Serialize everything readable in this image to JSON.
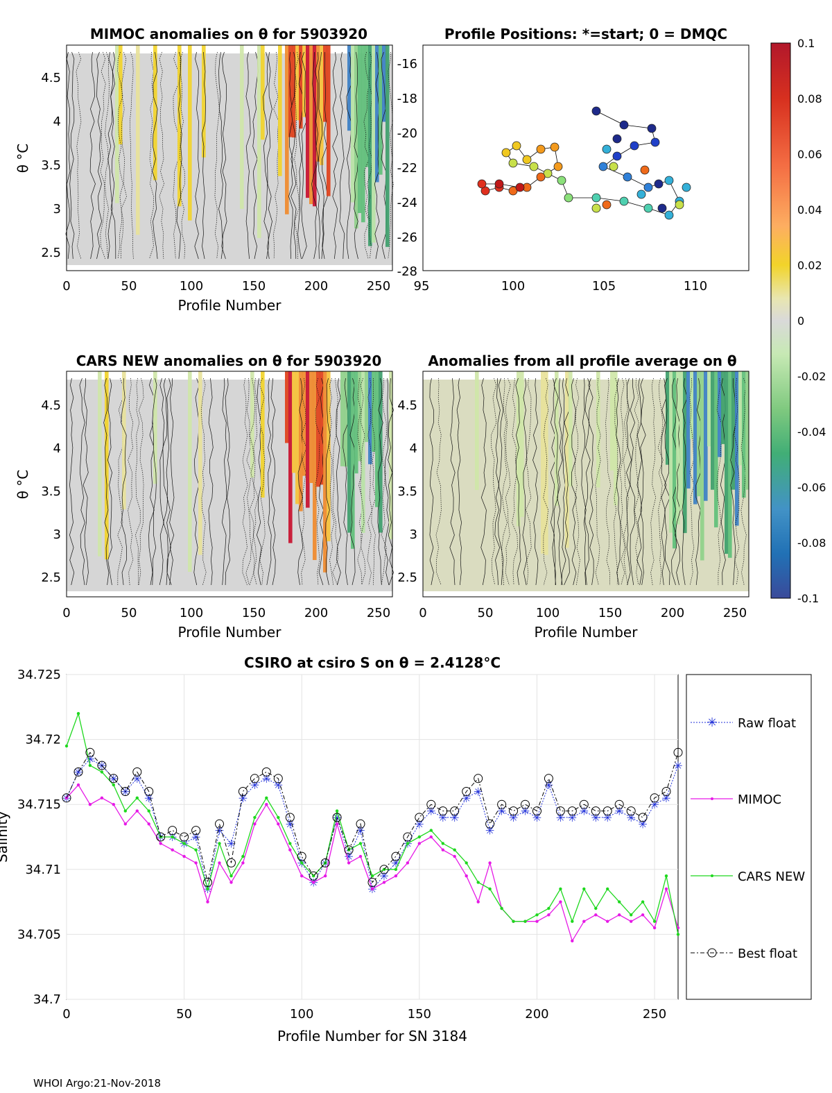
{
  "footer": "WHOI Argo:21-Nov-2018",
  "colorbar": {
    "ticks": [
      "0.1",
      "0.08",
      "0.06",
      "0.04",
      "0.02",
      "0",
      "-0.02",
      "-0.04",
      "-0.06",
      "-0.08",
      "-0.1"
    ],
    "colors": [
      "#b2182b",
      "#d7301f",
      "#f46d43",
      "#fdae61",
      "#f2d42a",
      "#e8e6b0",
      "#d9d9d9",
      "#c7e9b4",
      "#7fc97f",
      "#41ae76",
      "#4292c6",
      "#2171b5",
      "#3a4a9a"
    ]
  },
  "panels": {
    "mimoc": {
      "title": "MIMOC anomalies on θ  for 5903920",
      "xlabel": "Profile Number",
      "ylabel": "θ °C",
      "xticks": [
        "0",
        "50",
        "100",
        "150",
        "200",
        "250"
      ],
      "yticks": [
        "4.5",
        "4",
        "3.5",
        "3",
        "2.5"
      ]
    },
    "positions": {
      "title": "Profile Positions: *=start; 0 = DMQC",
      "xticks": [
        "95",
        "100",
        "105",
        "110"
      ],
      "yticks": [
        "-16",
        "-18",
        "-20",
        "-22",
        "-24",
        "-26",
        "-28"
      ]
    },
    "cars": {
      "title": "CARS NEW anomalies on θ for 5903920",
      "xlabel": "Profile Number",
      "ylabel": "θ °C",
      "xticks": [
        "0",
        "50",
        "100",
        "150",
        "200",
        "250"
      ],
      "yticks": [
        "4.5",
        "4",
        "3.5",
        "3",
        "2.5"
      ]
    },
    "avg": {
      "title": "Anomalies from all profile average on θ",
      "xlabel": "Profile Number",
      "xticks": [
        "0",
        "50",
        "100",
        "150",
        "200",
        "250"
      ],
      "yticks": [
        "4.5",
        "4",
        "3.5",
        "3",
        "2.5"
      ]
    }
  },
  "chart_data": {
    "type": "line",
    "title": "CSIRO at csiro S on θ = 2.4128°C",
    "xlabel": "Profile Number for SN 3184",
    "ylabel": "Salinity",
    "xlim": [
      0,
      260
    ],
    "ylim": [
      34.7,
      34.725
    ],
    "xticks": [
      "0",
      "50",
      "100",
      "150",
      "200",
      "250"
    ],
    "yticks": [
      "34.725",
      "34.72",
      "34.715",
      "34.71",
      "34.705",
      "34.7"
    ],
    "x": [
      0,
      5,
      10,
      15,
      20,
      25,
      30,
      35,
      40,
      45,
      50,
      55,
      60,
      65,
      70,
      75,
      80,
      85,
      90,
      95,
      100,
      105,
      110,
      115,
      120,
      125,
      130,
      135,
      140,
      145,
      150,
      155,
      160,
      165,
      170,
      175,
      180,
      185,
      190,
      195,
      200,
      205,
      210,
      215,
      220,
      225,
      230,
      235,
      240,
      245,
      250,
      255,
      260
    ],
    "series": [
      {
        "name": "Raw float",
        "color": "#1f2fd8",
        "marker": "star",
        "values": [
          34.7155,
          34.7175,
          34.7185,
          34.718,
          34.717,
          34.716,
          34.717,
          34.7155,
          34.7125,
          34.7125,
          34.712,
          34.7125,
          34.7085,
          34.713,
          34.712,
          34.7155,
          34.7165,
          34.717,
          34.7165,
          34.7135,
          34.7105,
          34.709,
          34.7105,
          34.714,
          34.711,
          34.713,
          34.7085,
          34.7095,
          34.7105,
          34.712,
          34.7135,
          34.7145,
          34.714,
          34.714,
          34.7155,
          34.716,
          34.713,
          34.7145,
          34.714,
          34.7145,
          34.714,
          34.7165,
          34.714,
          34.714,
          34.7145,
          34.714,
          34.714,
          34.7145,
          34.714,
          34.7135,
          34.715,
          34.7155,
          34.718
        ]
      },
      {
        "name": "MIMOC",
        "color": "#e619e6",
        "marker": "dot",
        "values": [
          34.7155,
          34.7165,
          34.715,
          34.7155,
          34.715,
          34.7135,
          34.7145,
          34.7135,
          34.712,
          34.7115,
          34.711,
          34.7105,
          34.7075,
          34.7105,
          34.709,
          34.7105,
          34.7135,
          34.715,
          34.7135,
          34.7115,
          34.7095,
          34.709,
          34.7095,
          34.7135,
          34.7105,
          34.711,
          34.7085,
          34.709,
          34.7095,
          34.7105,
          34.712,
          34.7125,
          34.7115,
          34.711,
          34.7095,
          34.7075,
          34.7105,
          34.707,
          34.706,
          34.706,
          34.706,
          34.7065,
          34.7075,
          34.7045,
          34.706,
          34.7065,
          34.706,
          34.7065,
          34.706,
          34.7065,
          34.7055,
          34.7085,
          34.7055
        ]
      },
      {
        "name": "CARS NEW",
        "color": "#1ed81e",
        "marker": "dot",
        "values": [
          34.7195,
          34.722,
          34.718,
          34.7175,
          34.7165,
          34.7145,
          34.7155,
          34.7145,
          34.7125,
          34.7125,
          34.712,
          34.7115,
          34.7085,
          34.712,
          34.7095,
          34.711,
          34.714,
          34.7155,
          34.714,
          34.712,
          34.7105,
          34.7095,
          34.7105,
          34.7145,
          34.7115,
          34.712,
          34.7095,
          34.71,
          34.71,
          34.712,
          34.7125,
          34.713,
          34.712,
          34.7115,
          34.7105,
          34.709,
          34.7085,
          34.707,
          34.706,
          34.706,
          34.7065,
          34.707,
          34.7085,
          34.706,
          34.7085,
          34.707,
          34.7085,
          34.7075,
          34.7065,
          34.7075,
          34.706,
          34.7095,
          34.705
        ]
      },
      {
        "name": "Best float",
        "color": "#000000",
        "marker": "circle",
        "values": [
          34.7155,
          34.7175,
          34.719,
          34.718,
          34.717,
          34.716,
          34.7175,
          34.716,
          34.7125,
          34.713,
          34.7125,
          34.713,
          34.709,
          34.7135,
          34.7105,
          34.716,
          34.717,
          34.7175,
          34.717,
          34.714,
          34.711,
          34.7095,
          34.7105,
          34.714,
          34.7115,
          34.7135,
          34.709,
          34.71,
          34.711,
          34.7125,
          34.714,
          34.715,
          34.7145,
          34.7145,
          34.716,
          34.717,
          34.7135,
          34.715,
          34.7145,
          34.715,
          34.7145,
          34.717,
          34.7145,
          34.7145,
          34.715,
          34.7145,
          34.7145,
          34.715,
          34.7145,
          34.714,
          34.7155,
          34.716,
          34.719
        ]
      }
    ],
    "legend": [
      "Raw float",
      "MIMOC",
      "CARS NEW",
      "Best float"
    ],
    "grid": true,
    "legend_position": "right"
  }
}
